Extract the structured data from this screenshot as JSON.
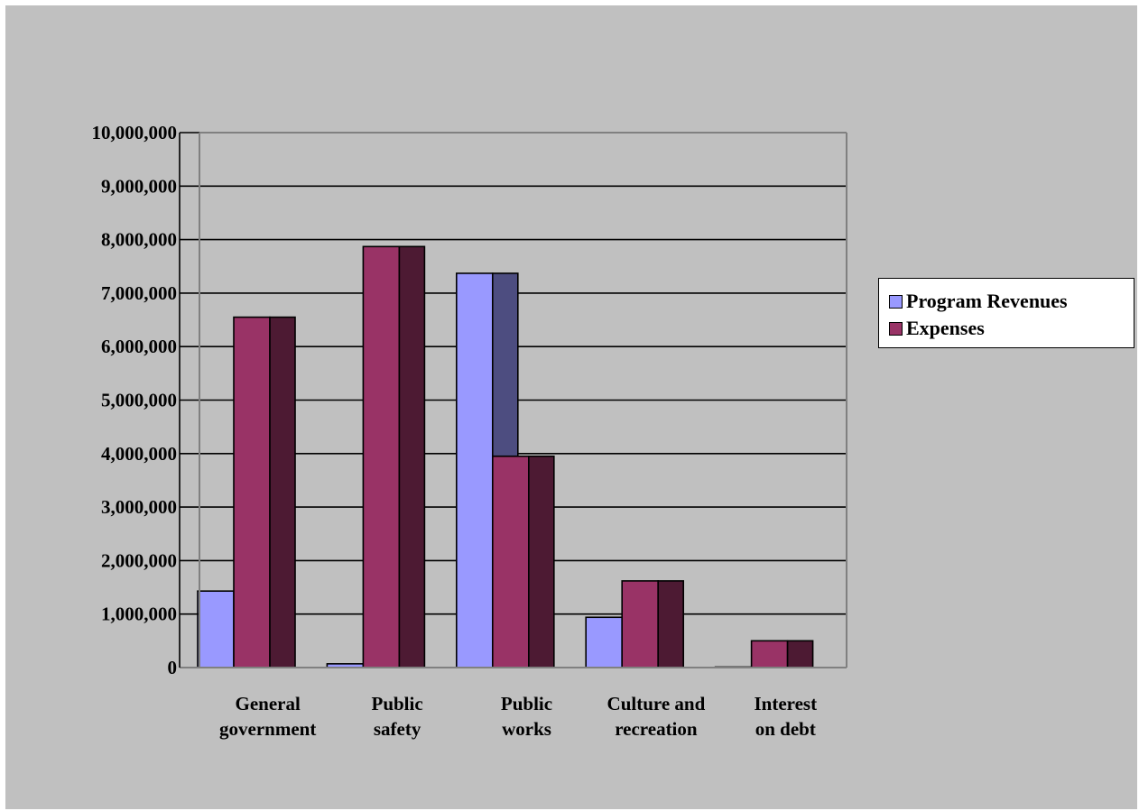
{
  "chart_data": {
    "type": "bar",
    "categories": [
      [
        "General",
        "government"
      ],
      [
        "Public",
        "safety"
      ],
      [
        "Public",
        "works"
      ],
      [
        "Culture and",
        "recreation"
      ],
      [
        "Interest",
        "on debt"
      ]
    ],
    "series": [
      {
        "name": "Program Revenues",
        "values": [
          1430000,
          70000,
          7370000,
          940000,
          10000
        ],
        "color": "#9999ff",
        "side_color": "#4d4d80"
      },
      {
        "name": "Expenses",
        "values": [
          6550000,
          7870000,
          3950000,
          1620000,
          500000
        ],
        "color": "#993366",
        "side_color": "#4d1a33"
      }
    ],
    "ylim": [
      0,
      10000000
    ],
    "ytick_labels": [
      "0",
      "1,000,000",
      "2,000,000",
      "3,000,000",
      "4,000,000",
      "5,000,000",
      "6,000,000",
      "7,000,000",
      "8,000,000",
      "9,000,000",
      "10,000,000"
    ],
    "grid": true,
    "legend_position": "right",
    "colors": {
      "background": "#c0c0c0",
      "grid": "#000000",
      "axis": "#808080"
    }
  }
}
